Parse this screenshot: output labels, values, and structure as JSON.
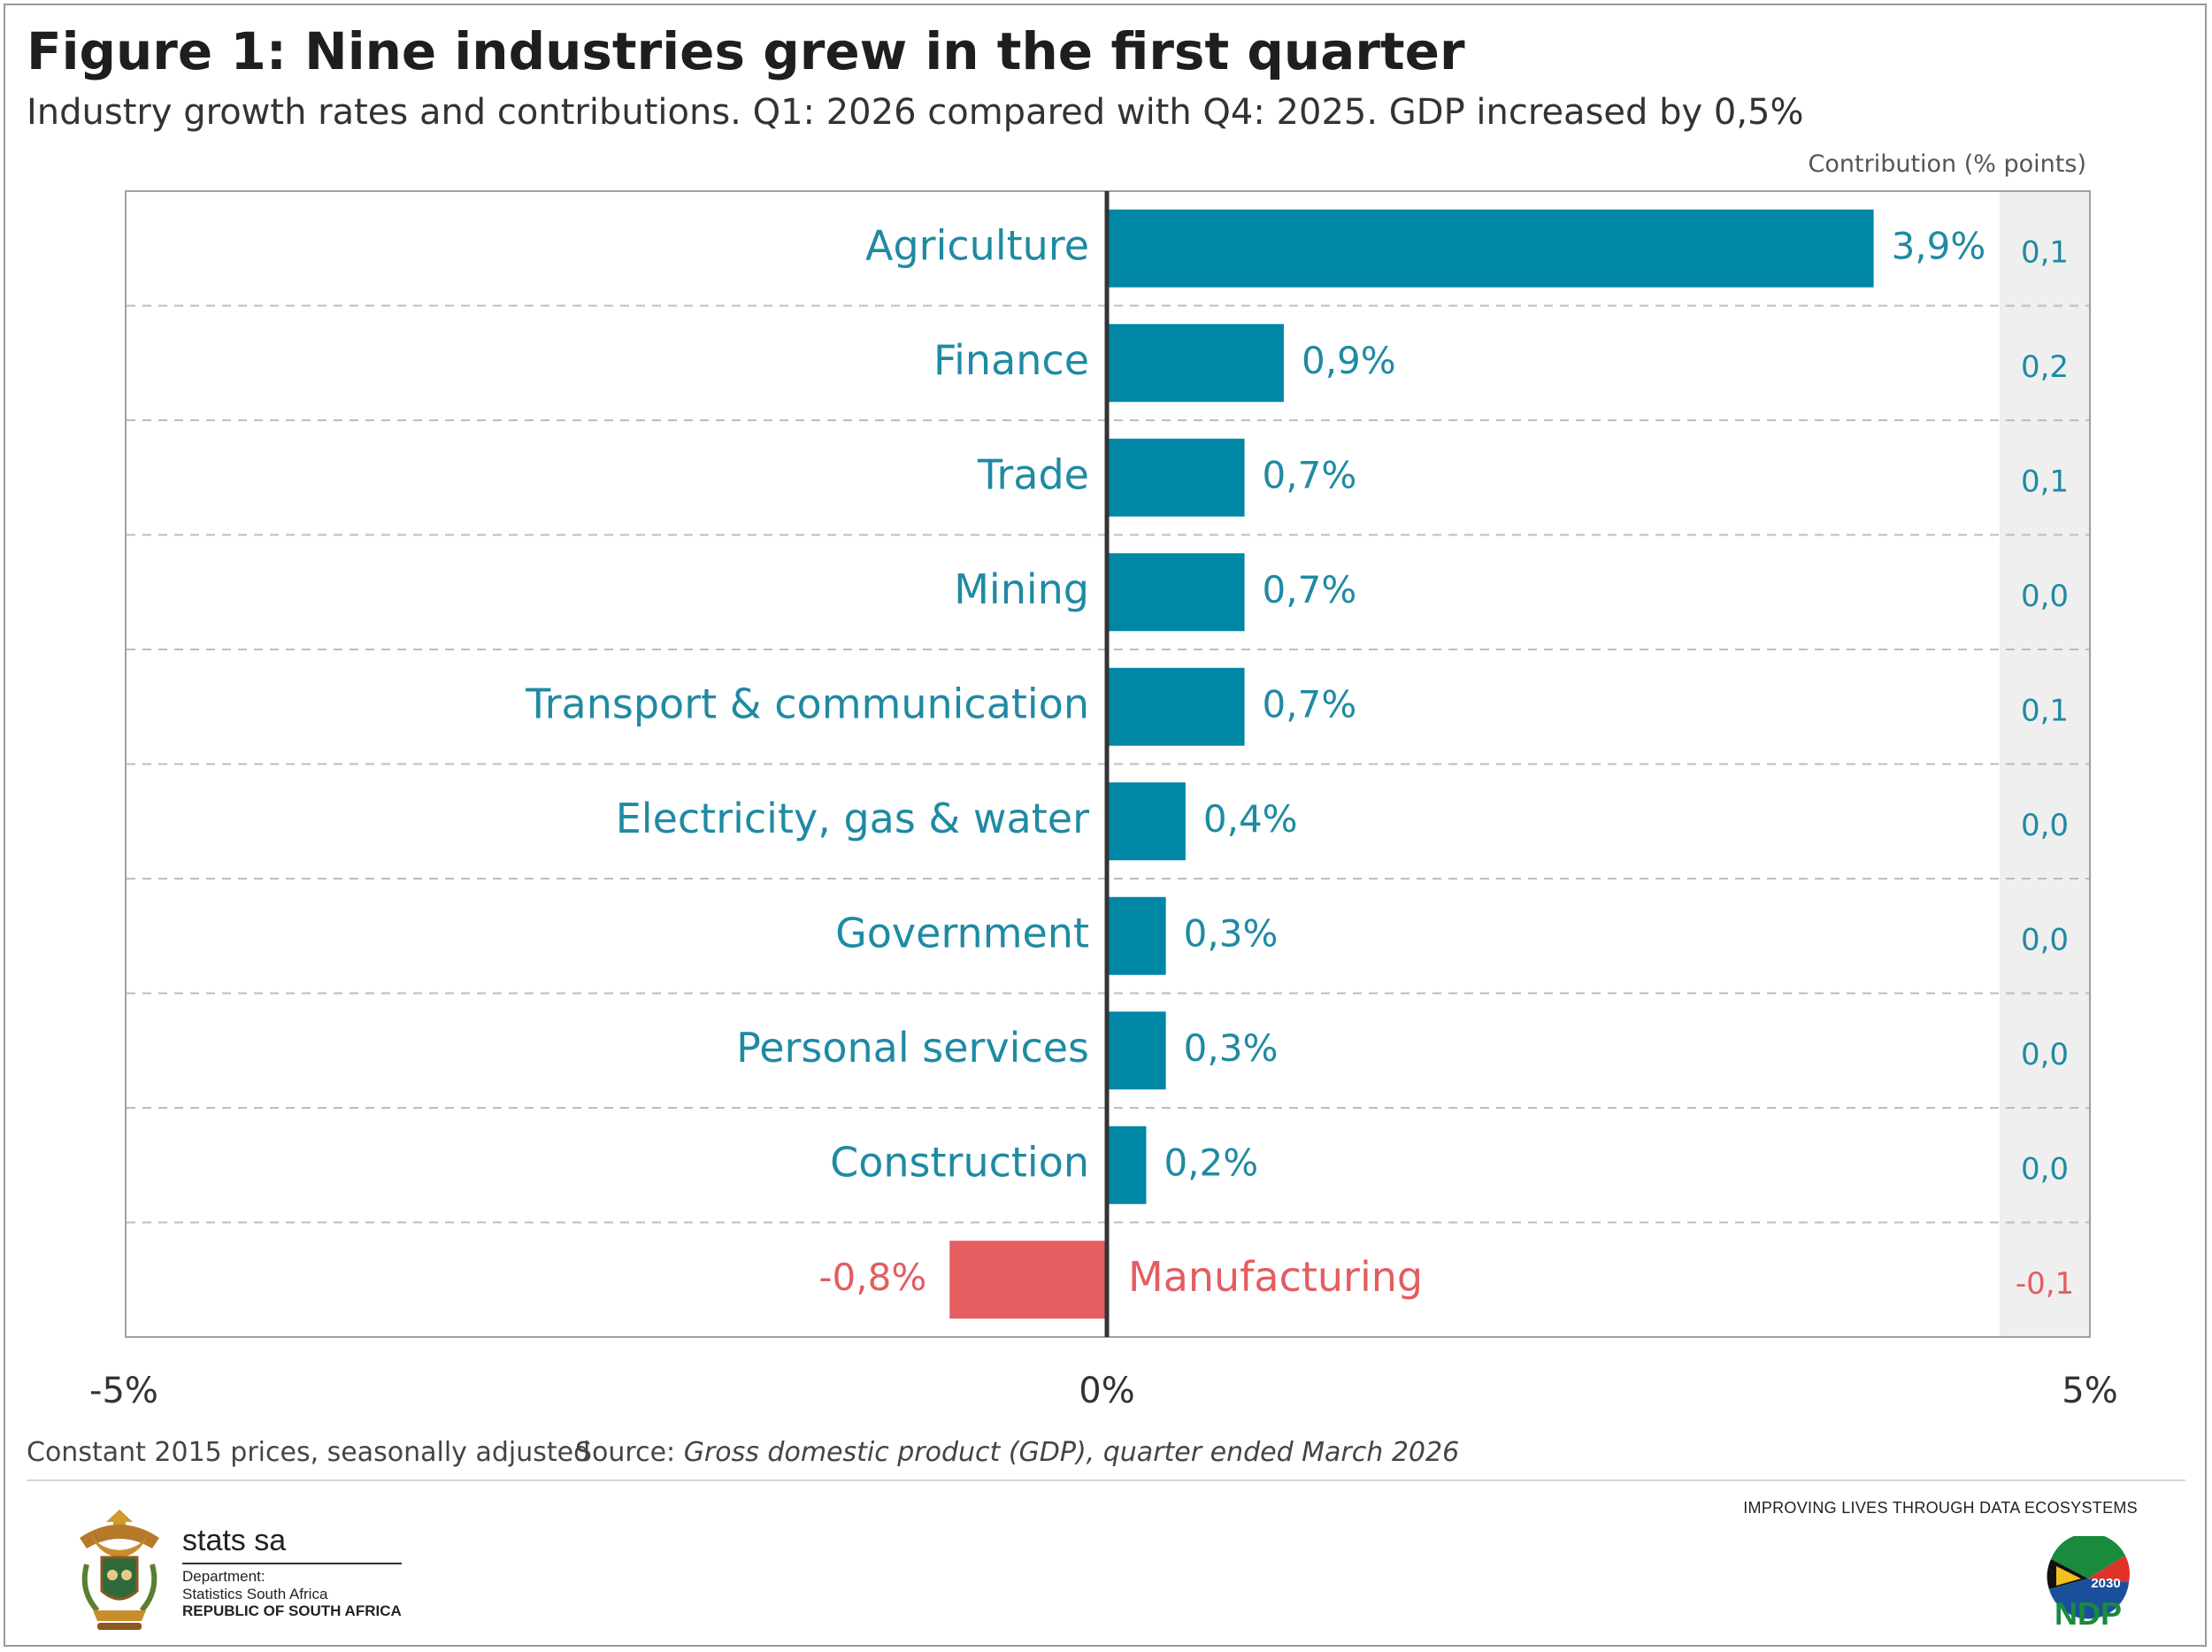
{
  "title": "Figure 1: Nine industries grew in the first quarter",
  "subtitle": "Industry growth rates and contributions. Q1: 2026 compared with Q4: 2025. GDP increased by 0,5%",
  "contribution_header": "Contribution (% points)",
  "footnote": "Constant 2015 prices, seasonally adjusted",
  "source_prefix": "Source: ",
  "source_title": "Gross domestic product (GDP), quarter ended March 2026",
  "tagline": "IMPROVING LIVES THROUGH DATA ECOSYSTEMS",
  "logo": {
    "name": "stats sa",
    "line1": "Department:",
    "line2": "Statistics South Africa",
    "line3": "REPUBLIC OF SOUTH AFRICA",
    "crest_icon": "coat-of-arms-icon",
    "ndp_icon": "ndp-2030-logo",
    "ndp_year": "2030",
    "ndp_text": "NDP"
  },
  "colors": {
    "positive": "#0087a6",
    "negative": "#e35d61",
    "label_positive": "#1f8aa3",
    "label_negative": "#e35d61",
    "contrib_band": "#efefef"
  },
  "chart_data": {
    "type": "bar",
    "orientation": "horizontal",
    "categories": [
      "Agriculture",
      "Finance",
      "Trade",
      "Mining",
      "Transport & communication",
      "Electricity, gas & water",
      "Government",
      "Personal services",
      "Construction",
      "Manufacturing"
    ],
    "values": [
      3.9,
      0.9,
      0.7,
      0.7,
      0.7,
      0.4,
      0.3,
      0.3,
      0.2,
      -0.8
    ],
    "value_labels": [
      "3,9%",
      "0,9%",
      "0,7%",
      "0,7%",
      "0,7%",
      "0,4%",
      "0,3%",
      "0,3%",
      "0,2%",
      "-0,8%"
    ],
    "contributions": [
      0.1,
      0.2,
      0.1,
      0.0,
      0.1,
      0.0,
      0.0,
      0.0,
      0.0,
      -0.1
    ],
    "contribution_labels": [
      "0,1",
      "0,2",
      "0,1",
      "0,0",
      "0,1",
      "0,0",
      "0,0",
      "0,0",
      "0,0",
      "-0,1"
    ],
    "xlim": [
      -5,
      5
    ],
    "x_ticks": [
      -5,
      0,
      5
    ],
    "x_tick_labels": [
      "-5%",
      "0%",
      "5%"
    ],
    "grid": "dashed horizontal row separators",
    "legend": "none"
  }
}
